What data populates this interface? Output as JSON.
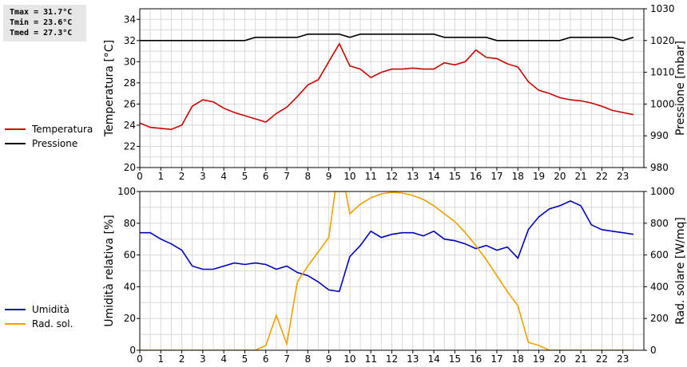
{
  "stats": {
    "tmax": "Tmax = 31.7°C",
    "tmin": "Tmin = 23.6°C",
    "tmed": "Tmed = 27.3°C"
  },
  "legend_top": [
    {
      "label": "Temperatura",
      "color": "#cc0000"
    },
    {
      "label": "Pressione",
      "color": "#000000"
    }
  ],
  "legend_bottom": [
    {
      "label": "Umidità",
      "color": "#0000bb"
    },
    {
      "label": "Rad. sol.",
      "color": "#f0a000"
    }
  ],
  "chart_data": [
    {
      "type": "line",
      "xlim": [
        0,
        24
      ],
      "x_ticks": [
        "0",
        "1",
        "2",
        "3",
        "4",
        "5",
        "6",
        "7",
        "8",
        "9",
        "10",
        "11",
        "12",
        "13",
        "14",
        "15",
        "16",
        "17",
        "18",
        "19",
        "20",
        "21",
        "22",
        "23"
      ],
      "grid": true,
      "ylabel_left": "Temperatura [°C]",
      "ylim_left": [
        20,
        35
      ],
      "yticks_left": [
        "20",
        "22",
        "24",
        "26",
        "28",
        "30",
        "32",
        "34"
      ],
      "ylabel_right": "Pressione [mbar]",
      "ylim_right": [
        980,
        1030
      ],
      "yticks_right": [
        "980",
        "990",
        "1000",
        "1010",
        "1020",
        "1030"
      ],
      "series": [
        {
          "name": "Temperatura",
          "axis": "left",
          "color": "#cc0000",
          "x": [
            0,
            0.5,
            1,
            1.5,
            2,
            2.5,
            3,
            3.5,
            4,
            4.5,
            5,
            5.5,
            6,
            6.5,
            7,
            7.5,
            8,
            8.5,
            9,
            9.5,
            10,
            10.5,
            11,
            11.5,
            12,
            12.5,
            13,
            13.5,
            14,
            14.5,
            15,
            15.5,
            16,
            16.5,
            17,
            17.5,
            18,
            18.5,
            19,
            19.5,
            20,
            20.5,
            21,
            21.5,
            22,
            22.5,
            23,
            23.5
          ],
          "y": [
            24.2,
            23.8,
            23.7,
            23.6,
            24.0,
            25.8,
            26.4,
            26.2,
            25.6,
            25.2,
            24.9,
            24.6,
            24.3,
            25.1,
            25.7,
            26.7,
            27.8,
            28.3,
            30.0,
            31.7,
            29.6,
            29.3,
            28.5,
            29.0,
            29.3,
            29.3,
            29.4,
            29.3,
            29.3,
            29.9,
            29.7,
            30.0,
            31.1,
            30.4,
            30.3,
            29.8,
            29.5,
            28.1,
            27.3,
            27.0,
            26.6,
            26.4,
            26.3,
            26.1,
            25.8,
            25.4,
            25.2,
            25.0
          ]
        },
        {
          "name": "Pressione",
          "axis": "right",
          "color": "#000000",
          "x": [
            0,
            0.5,
            1,
            1.5,
            2,
            2.5,
            3,
            3.5,
            4,
            4.5,
            5,
            5.5,
            6,
            6.5,
            7,
            7.5,
            8,
            8.5,
            9,
            9.5,
            10,
            10.5,
            11,
            11.5,
            12,
            12.5,
            13,
            13.5,
            14,
            14.5,
            15,
            15.5,
            16,
            16.5,
            17,
            17.5,
            18,
            18.5,
            19,
            19.5,
            20,
            20.5,
            21,
            21.5,
            22,
            22.5,
            23,
            23.5
          ],
          "y": [
            1020,
            1020,
            1020,
            1020,
            1020,
            1020,
            1020,
            1020,
            1020,
            1020,
            1020,
            1021,
            1021,
            1021,
            1021,
            1021,
            1022,
            1022,
            1022,
            1022,
            1021,
            1022,
            1022,
            1022,
            1022,
            1022,
            1022,
            1022,
            1022,
            1021,
            1021,
            1021,
            1021,
            1021,
            1020,
            1020,
            1020,
            1020,
            1020,
            1020,
            1020,
            1021,
            1021,
            1021,
            1021,
            1021,
            1020,
            1021
          ]
        }
      ]
    },
    {
      "type": "line",
      "xlim": [
        0,
        24
      ],
      "x_ticks": [
        "0",
        "1",
        "2",
        "3",
        "4",
        "5",
        "6",
        "7",
        "8",
        "9",
        "10",
        "11",
        "12",
        "13",
        "14",
        "15",
        "16",
        "17",
        "18",
        "19",
        "20",
        "21",
        "22",
        "23"
      ],
      "grid": true,
      "ylabel_left": "Umidità relativa [%]",
      "ylim_left": [
        0,
        100
      ],
      "yticks_left": [
        "0",
        "20",
        "40",
        "60",
        "80",
        "100"
      ],
      "ylabel_right": "Rad. solare [W/mq]",
      "ylim_right": [
        0,
        1000
      ],
      "yticks_right": [
        "0",
        "200",
        "400",
        "600",
        "800",
        "1000"
      ],
      "series": [
        {
          "name": "Umidità",
          "axis": "left",
          "color": "#0000bb",
          "x": [
            0,
            0.5,
            1,
            1.5,
            2,
            2.5,
            3,
            3.5,
            4,
            4.5,
            5,
            5.5,
            6,
            6.5,
            7,
            7.5,
            8,
            8.5,
            9,
            9.5,
            10,
            10.5,
            11,
            11.5,
            12,
            12.5,
            13,
            13.5,
            14,
            14.5,
            15,
            15.5,
            16,
            16.5,
            17,
            17.5,
            18,
            18.5,
            19,
            19.5,
            20,
            20.5,
            21,
            21.5,
            22,
            22.5,
            23,
            23.5
          ],
          "y": [
            74,
            74,
            70,
            67,
            63,
            53,
            51,
            51,
            53,
            55,
            54,
            55,
            54,
            51,
            53,
            49,
            47,
            43,
            38,
            37,
            59,
            66,
            75,
            71,
            73,
            74,
            74,
            72,
            75,
            70,
            69,
            67,
            64,
            66,
            63,
            65,
            58,
            76,
            84,
            89,
            91,
            94,
            91,
            79,
            76,
            75,
            74,
            73
          ]
        },
        {
          "name": "Rad. sol.",
          "axis": "right",
          "color": "#f0a000",
          "x": [
            0,
            1,
            2,
            3,
            4,
            5,
            5.5,
            6,
            6.5,
            7,
            7.5,
            8,
            8.5,
            9,
            9.3,
            9.5,
            9.8,
            10,
            10.5,
            11,
            11.5,
            12,
            12.5,
            13,
            13.5,
            14,
            14.5,
            15,
            15.5,
            16,
            16.5,
            17,
            17.5,
            18,
            18.5,
            19,
            19.5,
            20,
            21,
            22,
            23,
            23.5
          ],
          "y": [
            0,
            0,
            0,
            0,
            0,
            0,
            0,
            30,
            220,
            40,
            430,
            530,
            620,
            710,
            1000,
            1000,
            1000,
            860,
            920,
            960,
            985,
            995,
            990,
            975,
            950,
            910,
            860,
            810,
            740,
            660,
            570,
            470,
            370,
            280,
            50,
            30,
            0,
            0,
            0,
            0,
            0,
            0
          ]
        }
      ]
    }
  ]
}
